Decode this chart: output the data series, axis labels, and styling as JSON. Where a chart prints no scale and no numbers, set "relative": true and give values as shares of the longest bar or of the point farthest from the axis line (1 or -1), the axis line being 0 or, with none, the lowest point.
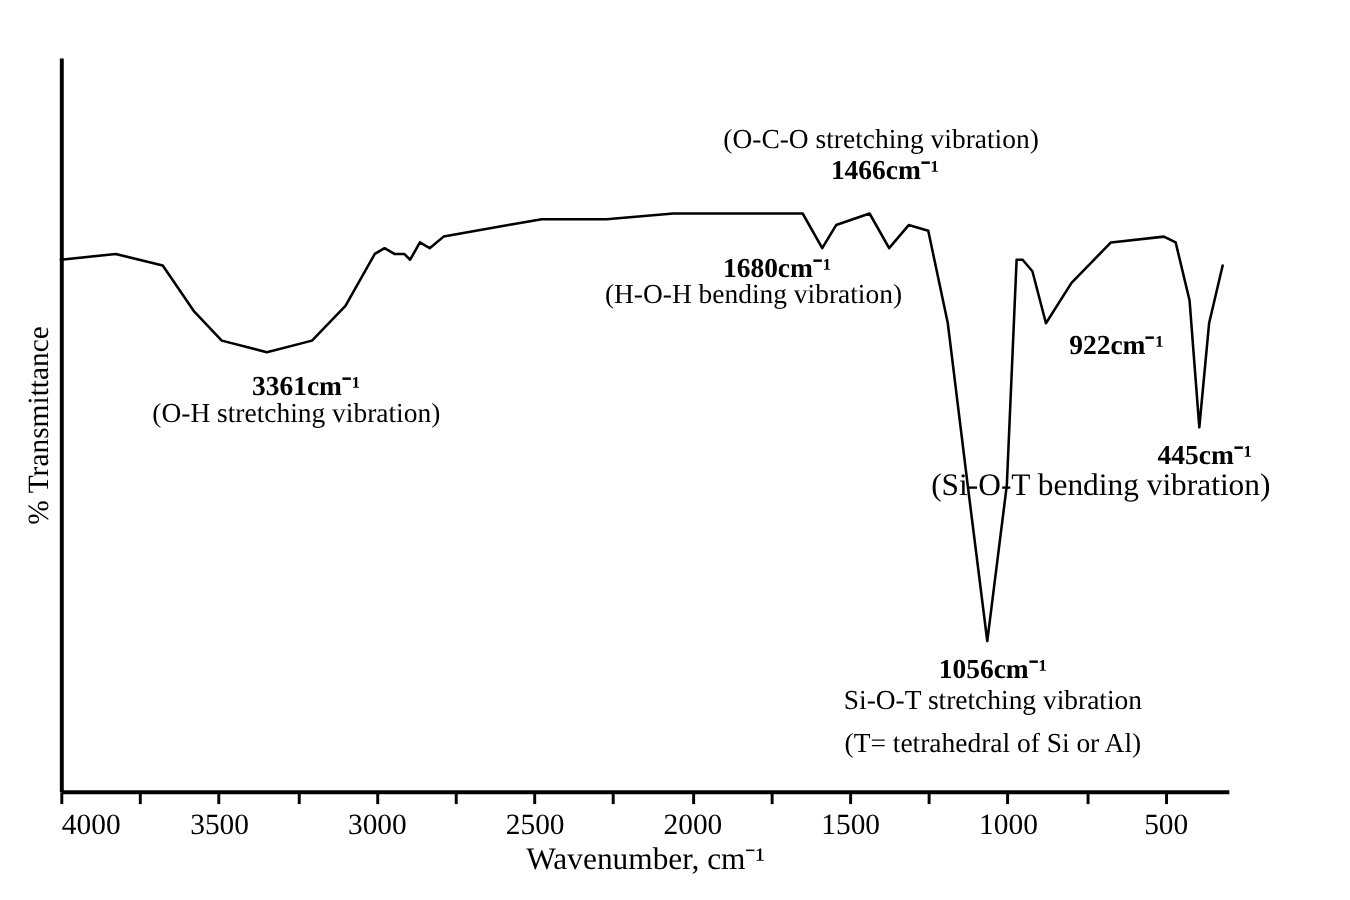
{
  "chart_data": {
    "type": "line",
    "relative": true,
    "xlabel": "Wavenumber, cm⁻¹",
    "ylabel": "% Transmittance",
    "xlim": [
      4000,
      300
    ],
    "xticks": [
      4000,
      {
        "value": 3750,
        "label": null
      },
      3500,
      {
        "value": 3250,
        "label": null
      },
      3000,
      {
        "value": 2750,
        "label": null
      },
      2500,
      {
        "value": 2250,
        "label": null
      },
      2000,
      {
        "value": 1750,
        "label": null
      },
      1500,
      {
        "value": 1250,
        "label": null
      },
      1000,
      {
        "value": 750,
        "label": null
      },
      500
    ],
    "tick_labels": "x",
    "grid": false,
    "marker": "none",
    "line_style": "solid",
    "series": [
      {
        "color": "#000000",
        "x": [
          4000,
          3826,
          3677,
          3577,
          3490,
          3347,
          3204,
          3098,
          3005,
          2974,
          2943,
          2912,
          2893,
          2862,
          2831,
          2787,
          2582,
          2476,
          2271,
          2059,
          1854,
          1649,
          1587,
          1543,
          1437,
          1375,
          1313,
          1251,
          1189,
          1126,
          1064,
          1002,
          971,
          952,
          921,
          878,
          797,
          672,
          504,
          467,
          423,
          392,
          361,
          318
        ],
        "values": [
          0.92,
          0.93,
          0.91,
          0.83,
          0.78,
          0.76,
          0.78,
          0.84,
          0.93,
          0.94,
          0.93,
          0.93,
          0.92,
          0.95,
          0.94,
          0.96,
          0.98,
          0.99,
          0.99,
          1.0,
          1.0,
          1.0,
          0.94,
          0.98,
          1.0,
          0.94,
          0.98,
          0.97,
          0.81,
          0.53,
          0.26,
          0.53,
          0.92,
          0.92,
          0.9,
          0.81,
          0.88,
          0.95,
          0.96,
          0.95,
          0.85,
          0.63,
          0.81,
          0.91
        ]
      }
    ],
    "annotations": [
      "3361cm⁻¹",
      "(O-H stretching vibration)",
      "(O-C-O stretching vibration)",
      "1466cm⁻¹",
      "1680cm⁻¹",
      "(H-O-H bending vibration)",
      "922cm⁻¹",
      "445cm⁻¹",
      "(Si-O-T bending vibration)",
      "1056cm⁻¹",
      "Si-O-T stretching vibration",
      "(T= tetrahedral of Si or Al)"
    ]
  }
}
